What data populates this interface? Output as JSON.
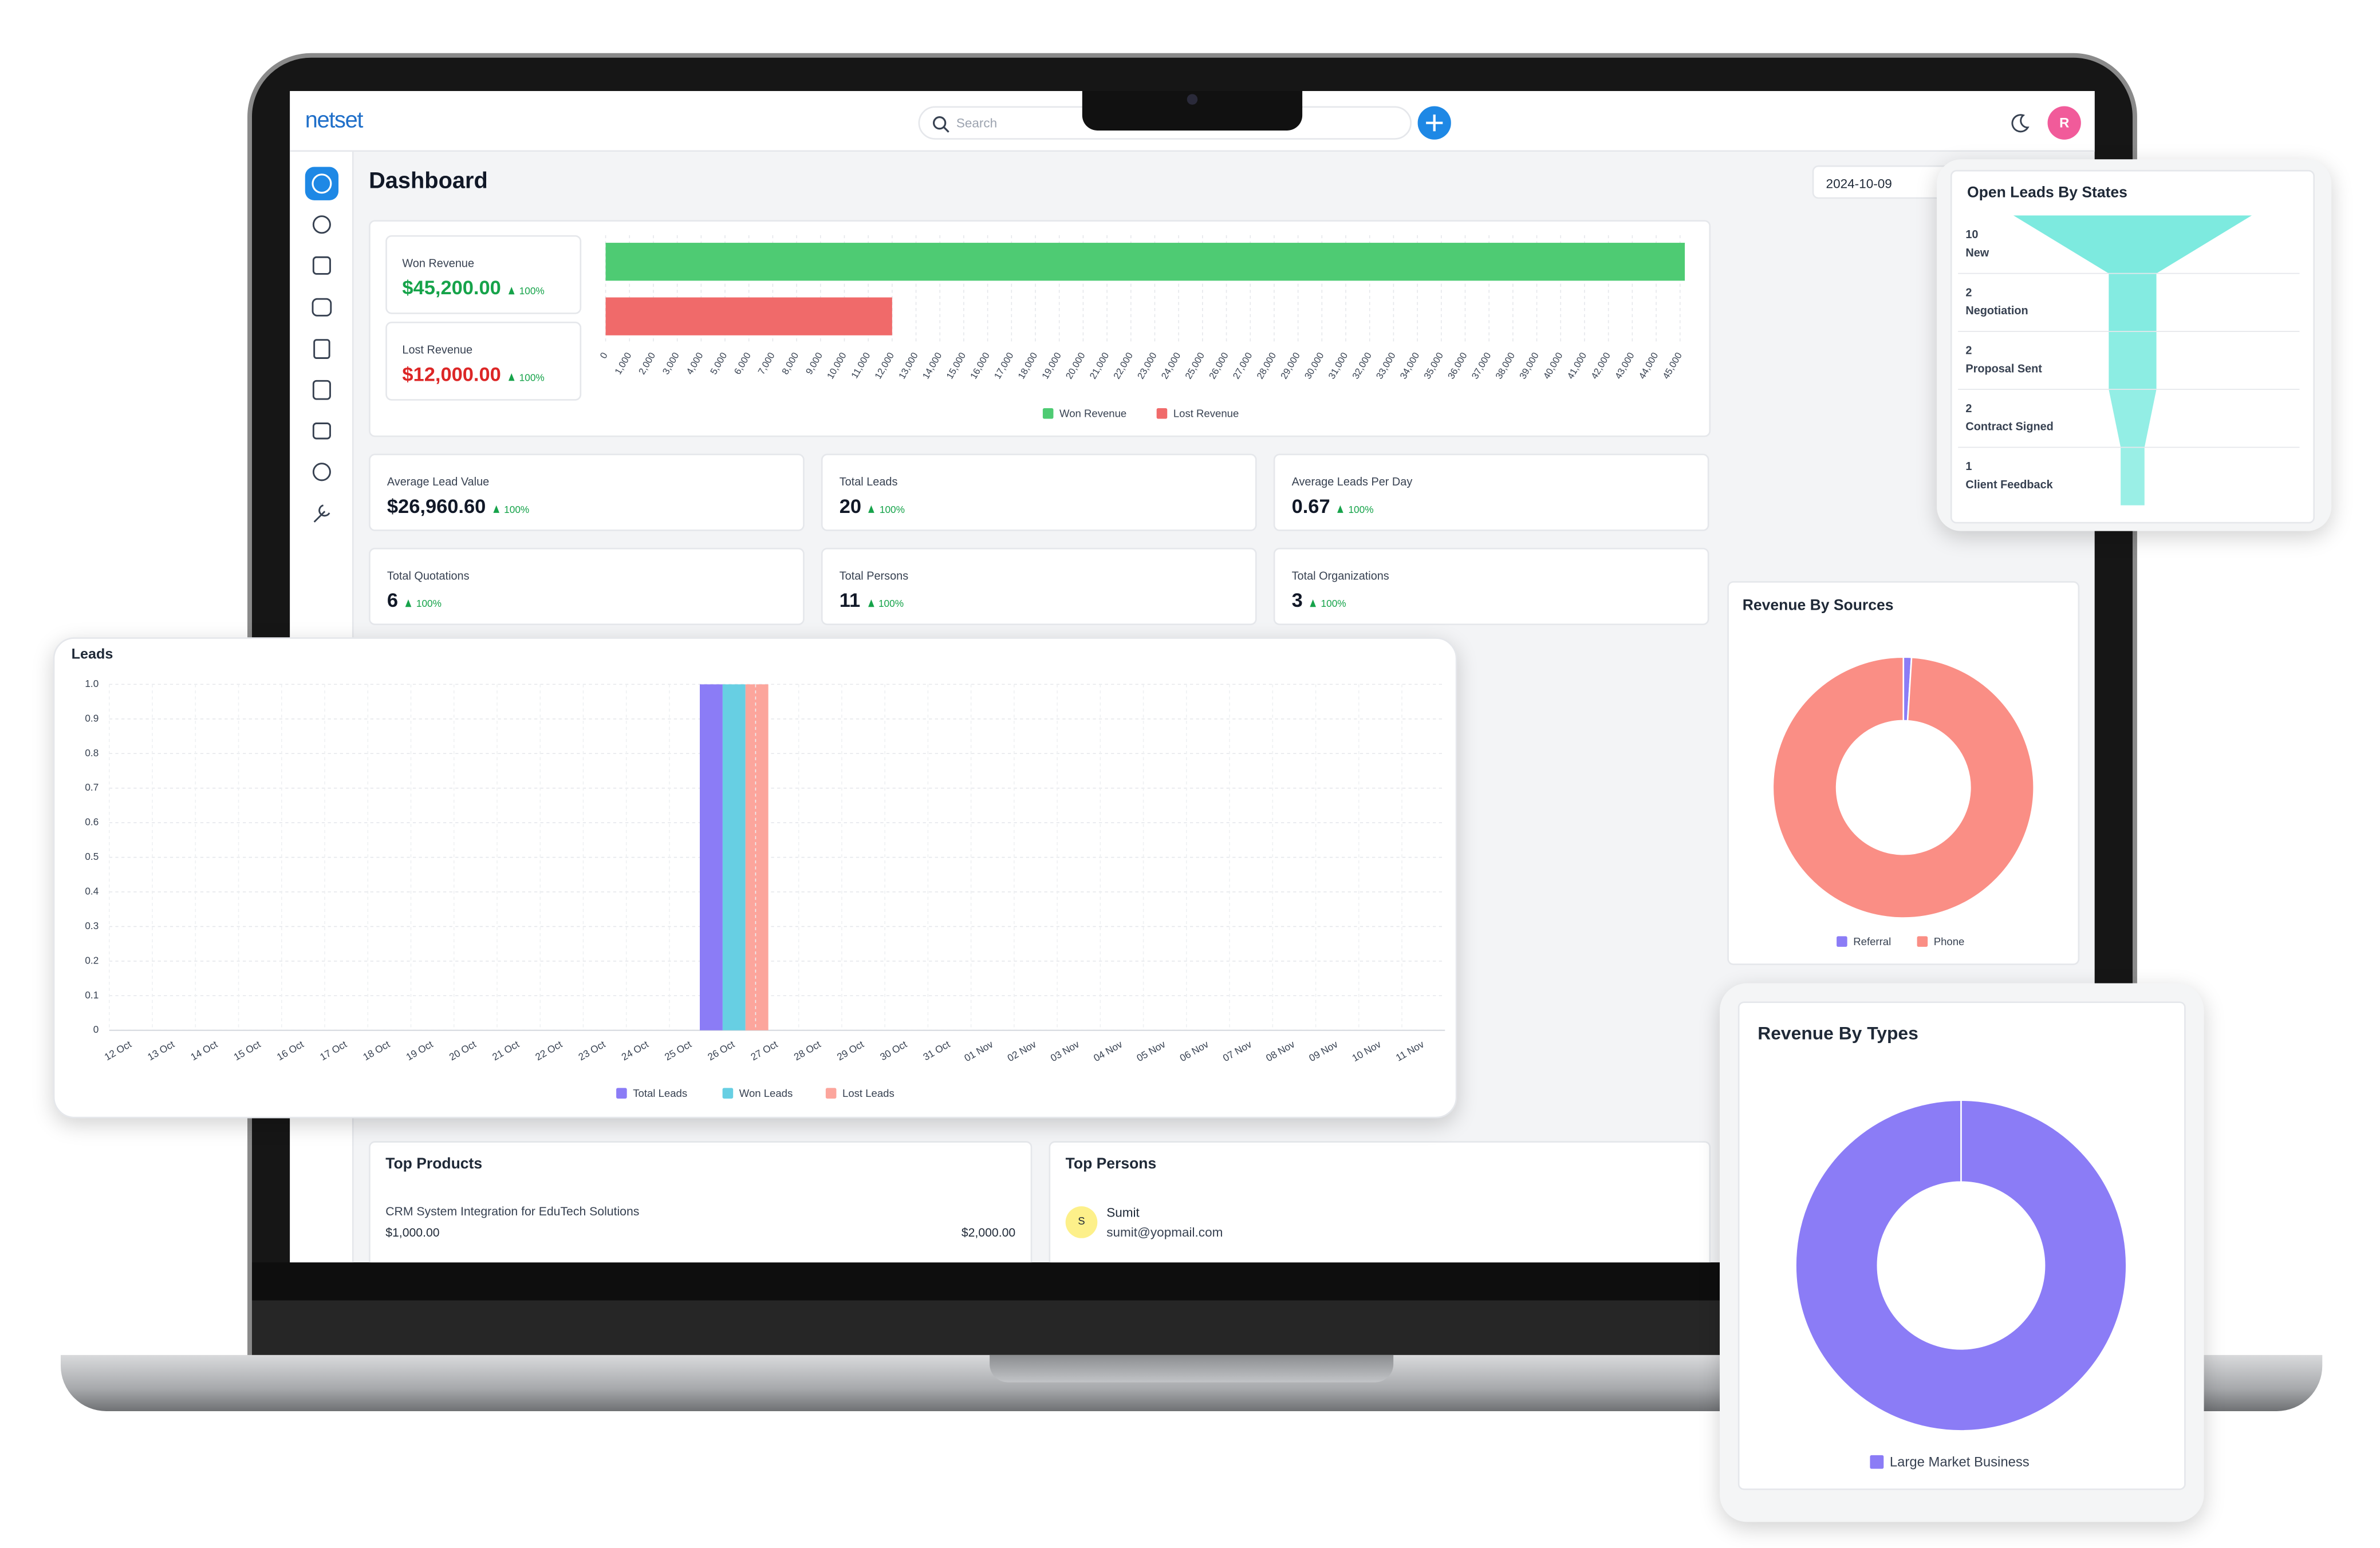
{
  "header": {
    "logo": "netset",
    "search": "Search",
    "avatar": "R"
  },
  "dashboard": {
    "title": "Dashboard",
    "date": "2024-10-09"
  },
  "revenue_cards": [
    {
      "label": "Won Revenue",
      "value": "$45,200.00",
      "change": "100%"
    },
    {
      "label": "Lost Revenue",
      "value": "$12,000.00",
      "change": "100%"
    }
  ],
  "stats": [
    {
      "label": "Average Lead Value",
      "value": "$26,960.60",
      "change": "100%"
    },
    {
      "label": "Total Leads",
      "value": "20",
      "change": "100%"
    },
    {
      "label": "Average Leads Per Day",
      "value": "0.67",
      "change": "100%"
    },
    {
      "label": "Total Quotations",
      "value": "6",
      "change": "100%"
    },
    {
      "label": "Total Persons",
      "value": "11",
      "change": "100%"
    },
    {
      "label": "Total Organizations",
      "value": "3",
      "change": "100%"
    }
  ],
  "top_products": {
    "title": "Top Products",
    "items": [
      {
        "name": "CRM System Integration for EduTech Solutions",
        "price": "$1,000.00",
        "total": "$2,000.00"
      }
    ]
  },
  "top_persons": {
    "title": "Top Persons",
    "items": [
      {
        "initial": "S",
        "name": "Sumit",
        "email": "sumit@yopmail.com"
      }
    ]
  },
  "chart_data": [
    {
      "type": "hbar",
      "series": [
        {
          "name": "Won Revenue",
          "color": "#4ecb73",
          "values": [
            45200
          ]
        },
        {
          "name": "Lost Revenue",
          "color": "#f06a6a",
          "values": [
            12000
          ]
        }
      ],
      "xlim": [
        0,
        45200
      ],
      "xticks": [
        0,
        {
          "value": 1000,
          "label": "1,000"
        },
        {
          "value": 2000,
          "label": "2,000"
        },
        {
          "value": 3000,
          "label": "3,000"
        },
        {
          "value": 4000,
          "label": "4,000"
        },
        {
          "value": 5000,
          "label": "5,000"
        },
        {
          "value": 6000,
          "label": "6,000"
        },
        {
          "value": 7000,
          "label": "7,000"
        },
        {
          "value": 8000,
          "label": "8,000"
        },
        {
          "value": 9000,
          "label": "9,000"
        },
        {
          "value": 10000,
          "label": "10,000"
        },
        {
          "value": 11000,
          "label": "11,000"
        },
        {
          "value": 12000,
          "label": "12,000"
        },
        {
          "value": 13000,
          "label": "13,000"
        },
        {
          "value": 14000,
          "label": "14,000"
        },
        {
          "value": 15000,
          "label": "15,000"
        },
        {
          "value": 16000,
          "label": "16,000"
        },
        {
          "value": 17000,
          "label": "17,000"
        },
        {
          "value": 18000,
          "label": "18,000"
        },
        {
          "value": 19000,
          "label": "19,000"
        },
        {
          "value": 20000,
          "label": "20,000"
        },
        {
          "value": 21000,
          "label": "21,000"
        },
        {
          "value": 22000,
          "label": "22,000"
        },
        {
          "value": 23000,
          "label": "23,000"
        },
        {
          "value": 24000,
          "label": "24,000"
        },
        {
          "value": 25000,
          "label": "25,000"
        },
        {
          "value": 26000,
          "label": "26,000"
        },
        {
          "value": 27000,
          "label": "27,000"
        },
        {
          "value": 28000,
          "label": "28,000"
        },
        {
          "value": 29000,
          "label": "29,000"
        },
        {
          "value": 30000,
          "label": "30,000"
        },
        {
          "value": 31000,
          "label": "31,000"
        },
        {
          "value": 32000,
          "label": "32,000"
        },
        {
          "value": 33000,
          "label": "33,000"
        },
        {
          "value": 34000,
          "label": "34,000"
        },
        {
          "value": 35000,
          "label": "35,000"
        },
        {
          "value": 36000,
          "label": "36,000"
        },
        {
          "value": 37000,
          "label": "37,000"
        },
        {
          "value": 38000,
          "label": "38,000"
        },
        {
          "value": 39000,
          "label": "39,000"
        },
        {
          "value": 40000,
          "label": "40,000"
        },
        {
          "value": 41000,
          "label": "41,000"
        },
        {
          "value": 42000,
          "label": "42,000"
        },
        {
          "value": 43000,
          "label": "43,000"
        },
        {
          "value": 44000,
          "label": "44,000"
        },
        {
          "value": 45000,
          "label": "45,000"
        }
      ],
      "grid": true
    },
    {
      "type": "bar",
      "title": "Leads",
      "categories": [
        "12 Oct",
        "13 Oct",
        "14 Oct",
        "15 Oct",
        "16 Oct",
        "17 Oct",
        "18 Oct",
        "19 Oct",
        "20 Oct",
        "21 Oct",
        "22 Oct",
        "23 Oct",
        "24 Oct",
        "25 Oct",
        "26 Oct",
        "27 Oct",
        "28 Oct",
        "29 Oct",
        "30 Oct",
        "31 Oct",
        "01 Nov",
        "02 Nov",
        "03 Nov",
        "04 Nov",
        "05 Nov",
        "06 Nov",
        "07 Nov",
        "08 Nov",
        "09 Nov",
        "10 Nov",
        "11 Nov"
      ],
      "series": [
        {
          "name": "Total Leads",
          "color": "#8b7cf6",
          "values": [
            0,
            0,
            0,
            0,
            0,
            0,
            0,
            0,
            0,
            0,
            0,
            0,
            0,
            0,
            1,
            0,
            0,
            0,
            0,
            0,
            0,
            0,
            0,
            0,
            0,
            0,
            0,
            0,
            0,
            0,
            0
          ]
        },
        {
          "name": "Won Leads",
          "color": "#67cfe3",
          "values": [
            0,
            0,
            0,
            0,
            0,
            0,
            0,
            0,
            0,
            0,
            0,
            0,
            0,
            0,
            1,
            0,
            0,
            0,
            0,
            0,
            0,
            0,
            0,
            0,
            0,
            0,
            0,
            0,
            0,
            0,
            0
          ]
        },
        {
          "name": "Lost Leads",
          "color": "#fca59c",
          "values": [
            0,
            0,
            0,
            0,
            0,
            0,
            0,
            0,
            0,
            0,
            0,
            0,
            0,
            0,
            1,
            0,
            0,
            0,
            0,
            0,
            0,
            0,
            0,
            0,
            0,
            0,
            0,
            0,
            0,
            0,
            0
          ]
        }
      ],
      "ylim": [
        0,
        1
      ],
      "yticks": [
        0,
        0.1,
        0.2,
        0.3,
        0.4,
        0.5,
        0.6,
        0.7,
        0.8,
        0.9,
        {
          "value": 1,
          "label": "1.0"
        }
      ],
      "grid": true
    },
    {
      "type": "funnel",
      "title": "Open Leads By States",
      "categories": [
        "New",
        "Negotiation",
        "Proposal Sent",
        "Contract Signed",
        "Client Feedback"
      ],
      "values": [
        10,
        2,
        2,
        2,
        1
      ],
      "color": "#6fe8dc"
    },
    {
      "type": "donut",
      "title": "Revenue By Sources",
      "categories": [
        "Referral",
        "Phone"
      ],
      "values": [
        1,
        99
      ],
      "colors": [
        "#8b7cf6",
        "#fa8e85"
      ]
    },
    {
      "type": "donut",
      "title": "Revenue By Types",
      "categories": [
        "Large Market Business"
      ],
      "values": [
        100
      ],
      "colors": [
        "#8b7cf6"
      ]
    }
  ]
}
